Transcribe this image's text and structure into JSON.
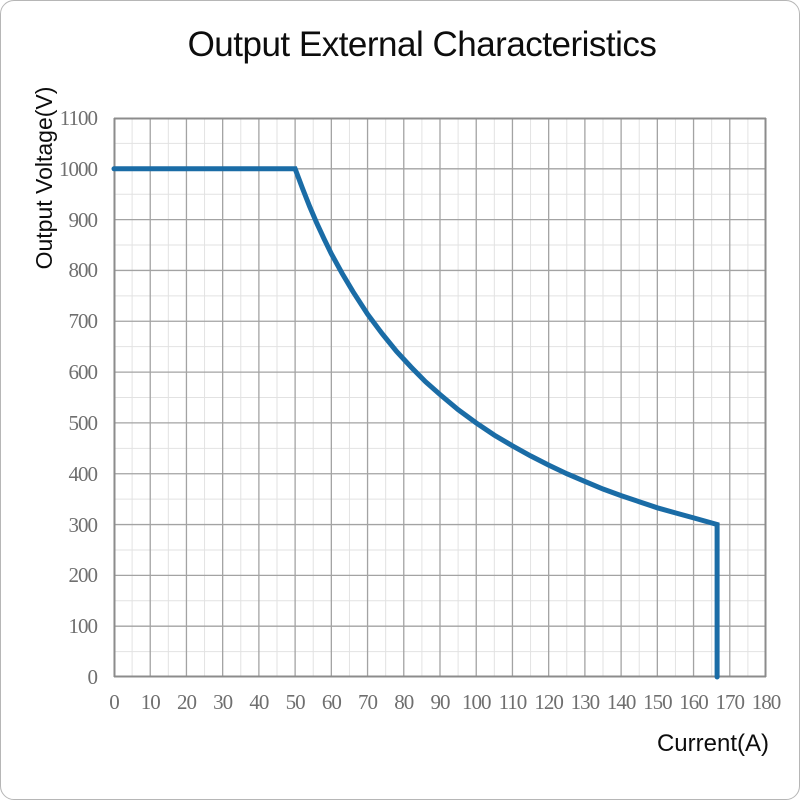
{
  "card": {
    "background": "#ffffff",
    "border_color": "#b6b6b6"
  },
  "chart_data": {
    "type": "line",
    "title": "Output External Characteristics",
    "xlabel": "Current(A)",
    "ylabel": "Output Voltage(V)",
    "xlim": [
      0,
      180
    ],
    "ylim": [
      0,
      1100
    ],
    "x_ticks": [
      0,
      10,
      20,
      30,
      40,
      50,
      60,
      70,
      80,
      90,
      100,
      110,
      120,
      130,
      140,
      150,
      160,
      170,
      180
    ],
    "y_ticks": [
      0,
      100,
      200,
      300,
      400,
      500,
      600,
      700,
      800,
      900,
      1000,
      1100
    ],
    "grid": {
      "major_x_step": 10,
      "minor_x_step": 5,
      "major_y_step": 100,
      "minor_y_step": 50,
      "major_color": "#a3a3a3",
      "minor_color": "#e2e2e2",
      "border_color": "#8c8c8c"
    },
    "legend": "none",
    "tick_color": "#6f6f6f",
    "text_color": "#0d0d0d",
    "series": [
      {
        "name": "output voltage vs current",
        "color": "#1a6ca6",
        "width": 5,
        "points": [
          [
            0,
            1000
          ],
          [
            50,
            1000
          ],
          [
            52,
            962
          ],
          [
            54,
            926
          ],
          [
            56,
            893
          ],
          [
            58,
            862
          ],
          [
            60,
            833
          ],
          [
            63,
            794
          ],
          [
            66,
            758
          ],
          [
            70,
            714
          ],
          [
            74,
            676
          ],
          [
            78,
            641
          ],
          [
            82,
            610
          ],
          [
            86,
            581
          ],
          [
            90,
            556
          ],
          [
            95,
            526
          ],
          [
            100,
            500
          ],
          [
            105,
            476
          ],
          [
            110,
            455
          ],
          [
            115,
            435
          ],
          [
            120,
            417
          ],
          [
            125,
            400
          ],
          [
            130,
            385
          ],
          [
            135,
            370
          ],
          [
            140,
            357
          ],
          [
            145,
            345
          ],
          [
            150,
            333
          ],
          [
            155,
            323
          ],
          [
            160,
            313
          ],
          [
            166.5,
            300
          ],
          [
            166.5,
            0
          ]
        ]
      }
    ]
  }
}
